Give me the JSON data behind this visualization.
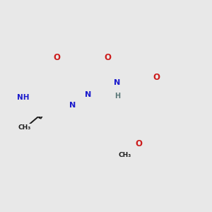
{
  "bg_color": "#e8e8e8",
  "bond_color": "#1a1a1a",
  "bond_lw": 1.4,
  "dbl_sep": 0.048,
  "atom_colors": {
    "N": "#1a1acc",
    "O": "#cc1a1a",
    "H": "#5a7878",
    "C": "#1a1a1a"
  },
  "figsize": [
    3.0,
    3.0
  ],
  "dpi": 100,
  "xlim": [
    -0.5,
    5.2
  ],
  "ylim": [
    -1.5,
    2.8
  ]
}
